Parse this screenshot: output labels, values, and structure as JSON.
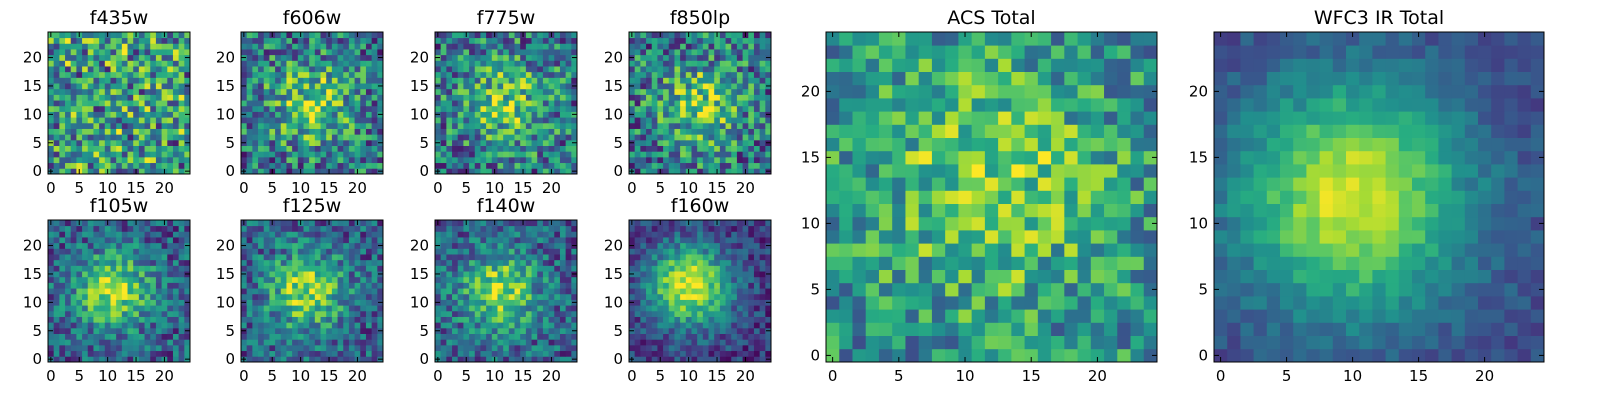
{
  "figure": {
    "description_free": true
  },
  "chart_data": [
    {
      "type": "heatmap",
      "title": "f435w",
      "size": 25,
      "pattern": "noise",
      "x_ticks": [
        "0",
        "5",
        "10",
        "15",
        "20"
      ],
      "y_ticks": [
        "0",
        "5",
        "10",
        "15",
        "20"
      ],
      "xlim": [
        -0.5,
        24.5
      ],
      "ylim": [
        -0.5,
        24.5
      ],
      "colormap": "viridis"
    },
    {
      "type": "heatmap",
      "title": "f606w",
      "size": 25,
      "pattern": "weak-center",
      "x_ticks": [
        "0",
        "5",
        "10",
        "15",
        "20"
      ],
      "y_ticks": [
        "0",
        "5",
        "10",
        "15",
        "20"
      ],
      "xlim": [
        -0.5,
        24.5
      ],
      "ylim": [
        -0.5,
        24.5
      ],
      "colormap": "viridis"
    },
    {
      "type": "heatmap",
      "title": "f775w",
      "size": 25,
      "pattern": "weak-center",
      "x_ticks": [
        "0",
        "5",
        "10",
        "15",
        "20"
      ],
      "y_ticks": [
        "0",
        "5",
        "10",
        "15",
        "20"
      ],
      "xlim": [
        -0.5,
        24.5
      ],
      "ylim": [
        -0.5,
        24.5
      ],
      "colormap": "viridis"
    },
    {
      "type": "heatmap",
      "title": "f850lp",
      "size": 25,
      "pattern": "weak-center",
      "x_ticks": [
        "0",
        "5",
        "10",
        "15",
        "20"
      ],
      "y_ticks": [
        "0",
        "5",
        "10",
        "15",
        "20"
      ],
      "xlim": [
        -0.5,
        24.5
      ],
      "ylim": [
        -0.5,
        24.5
      ],
      "colormap": "viridis"
    },
    {
      "type": "heatmap",
      "title": "f105w",
      "size": 25,
      "pattern": "center",
      "x_ticks": [
        "0",
        "5",
        "10",
        "15",
        "20"
      ],
      "y_ticks": [
        "0",
        "5",
        "10",
        "15",
        "20"
      ],
      "xlim": [
        -0.5,
        24.5
      ],
      "ylim": [
        -0.5,
        24.5
      ],
      "colormap": "viridis"
    },
    {
      "type": "heatmap",
      "title": "f125w",
      "size": 25,
      "pattern": "center",
      "x_ticks": [
        "0",
        "5",
        "10",
        "15",
        "20"
      ],
      "y_ticks": [
        "0",
        "5",
        "10",
        "15",
        "20"
      ],
      "xlim": [
        -0.5,
        24.5
      ],
      "ylim": [
        -0.5,
        24.5
      ],
      "colormap": "viridis"
    },
    {
      "type": "heatmap",
      "title": "f140w",
      "size": 25,
      "pattern": "center",
      "x_ticks": [
        "0",
        "5",
        "10",
        "15",
        "20"
      ],
      "y_ticks": [
        "0",
        "5",
        "10",
        "15",
        "20"
      ],
      "xlim": [
        -0.5,
        24.5
      ],
      "ylim": [
        -0.5,
        24.5
      ],
      "colormap": "viridis"
    },
    {
      "type": "heatmap",
      "title": "f160w",
      "size": 25,
      "pattern": "strong-center",
      "x_ticks": [
        "0",
        "5",
        "10",
        "15",
        "20"
      ],
      "y_ticks": [
        "0",
        "5",
        "10",
        "15",
        "20"
      ],
      "xlim": [
        -0.5,
        24.5
      ],
      "ylim": [
        -0.5,
        24.5
      ],
      "colormap": "viridis"
    },
    {
      "type": "heatmap",
      "title": "ACS Total",
      "size": 25,
      "pattern": "acs-total",
      "x_ticks": [
        "0",
        "5",
        "10",
        "15",
        "20"
      ],
      "y_ticks": [
        "0",
        "5",
        "10",
        "15",
        "20"
      ],
      "xlim": [
        -0.5,
        24.5
      ],
      "ylim": [
        -0.5,
        24.5
      ],
      "colormap": "viridis"
    },
    {
      "type": "heatmap",
      "title": "WFC3 IR Total",
      "size": 25,
      "pattern": "ir-total",
      "x_ticks": [
        "0",
        "5",
        "10",
        "15",
        "20"
      ],
      "y_ticks": [
        "0",
        "5",
        "10",
        "15",
        "20"
      ],
      "xlim": [
        -0.5,
        24.5
      ],
      "ylim": [
        -0.5,
        24.5
      ],
      "colormap": "viridis"
    }
  ]
}
